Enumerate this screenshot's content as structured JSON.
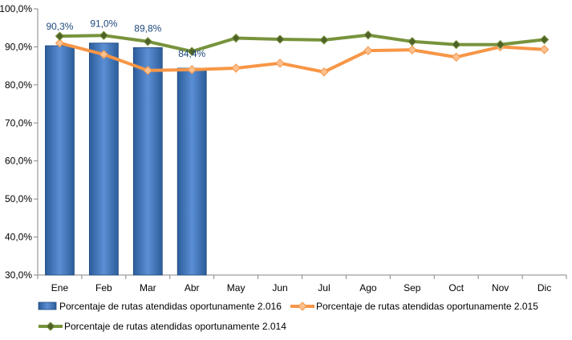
{
  "chart_data": {
    "type": "bar",
    "categories": [
      "Ene",
      "Feb",
      "Mar",
      "Abr",
      "May",
      "Jun",
      "Jul",
      "Ago",
      "Sep",
      "Oct",
      "Nov",
      "Dic"
    ],
    "ylim": [
      30,
      100
    ],
    "yticks": [
      "30,0%",
      "40,0%",
      "50,0%",
      "60,0%",
      "70,0%",
      "80,0%",
      "90,0%",
      "100,0%"
    ],
    "ytick_values": [
      30,
      40,
      50,
      60,
      70,
      80,
      90,
      100
    ],
    "grid": false,
    "legend_position": "bottom",
    "series": [
      {
        "name": "Porcentaje de rutas atendidas oportunamente 2.016",
        "kind": "bar",
        "color": "#4f81bd",
        "values": [
          90.3,
          91.0,
          89.8,
          84.4,
          null,
          null,
          null,
          null,
          null,
          null,
          null,
          null
        ],
        "labels": [
          "90,3%",
          "91,0%",
          "89,8%",
          "84,4%"
        ]
      },
      {
        "name": "Porcentaje de rutas atendidas oportunamente 2.015",
        "kind": "line",
        "color": "#f79646",
        "marker_color": "#fac090",
        "values": [
          91.0,
          88.0,
          83.8,
          84.0,
          84.4,
          85.7,
          83.4,
          89.0,
          89.2,
          87.3,
          90.0,
          89.3
        ]
      },
      {
        "name": "Porcentaje de rutas atendidas oportunamente 2.014",
        "kind": "line",
        "color": "#77933c",
        "marker_color": "#4f6228",
        "values": [
          92.8,
          93.0,
          91.4,
          88.8,
          92.3,
          92.0,
          91.8,
          93.1,
          91.4,
          90.6,
          90.6,
          91.9
        ]
      }
    ]
  }
}
